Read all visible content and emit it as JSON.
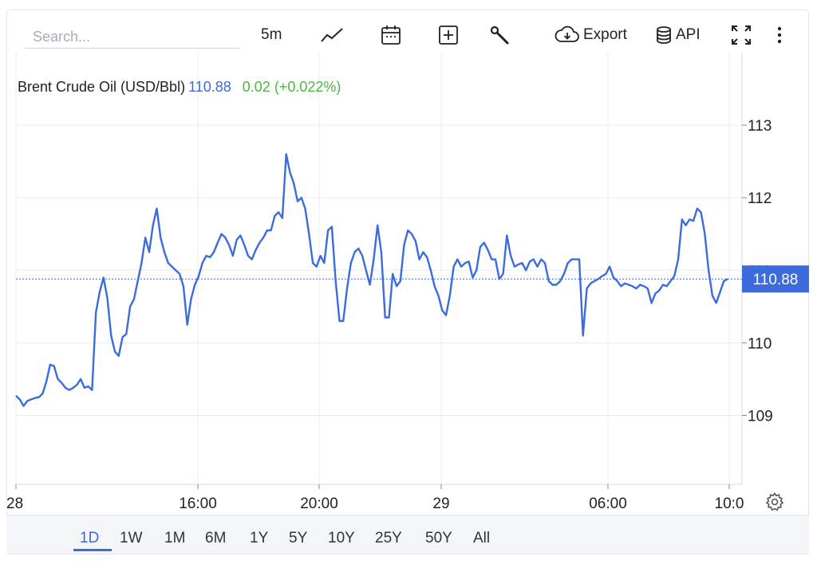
{
  "search": {
    "placeholder": "Search..."
  },
  "toolbar": {
    "interval_label": "5m",
    "export_label": "Export",
    "api_label": "API"
  },
  "legend": {
    "name": "Brent Crude Oil (USD/Bbl)",
    "value": "110.88",
    "change": "0.02 (+0.022%)"
  },
  "periods": [
    "1D",
    "1W",
    "1M",
    "6M",
    "1Y",
    "5Y",
    "10Y",
    "25Y",
    "50Y",
    "All"
  ],
  "active_period": "1D",
  "colors": {
    "line": "#3b6bdc",
    "change_positive": "#49b83f",
    "price_tag": "#3b6bdc"
  },
  "chart_data": {
    "type": "line",
    "title": "Brent Crude Oil (USD/Bbl)",
    "xlabel": "",
    "ylabel": "",
    "x_tick_labels": [
      "28",
      "16:00",
      "20:00",
      "29",
      "06:00",
      "10:0"
    ],
    "y_tick_labels": [
      "109",
      "110",
      "111",
      "112",
      "113"
    ],
    "ylim": [
      108.05,
      114.0
    ],
    "grid": true,
    "last_price_label": "110.88",
    "series": [
      {
        "values": [
          109.27,
          109.22,
          109.13,
          109.2,
          109.22,
          109.24,
          109.25,
          109.3,
          109.47,
          109.7,
          109.68,
          109.5,
          109.45,
          109.38,
          109.35,
          109.38,
          109.42,
          109.5,
          109.38,
          109.4,
          109.35,
          110.42,
          110.7,
          110.9,
          110.62,
          110.1,
          109.88,
          109.82,
          110.08,
          110.12,
          110.5,
          110.6,
          110.85,
          111.1,
          111.45,
          111.25,
          111.62,
          111.85,
          111.45,
          111.25,
          111.1,
          111.05,
          111.0,
          110.95,
          110.78,
          110.25,
          110.6,
          110.8,
          110.92,
          111.1,
          111.2,
          111.18,
          111.25,
          111.38,
          111.5,
          111.45,
          111.35,
          111.2,
          111.42,
          111.48,
          111.35,
          111.2,
          111.15,
          111.28,
          111.38,
          111.45,
          111.55,
          111.55,
          111.75,
          111.8,
          111.72,
          112.6,
          112.35,
          112.2,
          111.95,
          112.0,
          111.85,
          111.5,
          111.1,
          111.05,
          111.2,
          111.1,
          111.55,
          111.6,
          110.85,
          110.3,
          110.3,
          110.75,
          111.1,
          111.25,
          111.3,
          111.2,
          111.0,
          110.8,
          111.15,
          111.62,
          111.25,
          110.35,
          110.35,
          110.95,
          110.78,
          110.85,
          111.35,
          111.55,
          111.5,
          111.4,
          111.15,
          111.25,
          111.18,
          111.0,
          110.78,
          110.65,
          110.45,
          110.38,
          110.65,
          111.05,
          111.15,
          111.05,
          111.1,
          111.12,
          110.9,
          111.0,
          111.32,
          111.38,
          111.28,
          111.15,
          111.15,
          110.88,
          110.95,
          111.48,
          111.2,
          111.05,
          111.08,
          111.1,
          111.0,
          111.12,
          111.15,
          111.05,
          111.15,
          111.1,
          110.85,
          110.8,
          110.8,
          110.85,
          110.95,
          111.1,
          111.15,
          111.15,
          111.15,
          110.1,
          110.75,
          110.82,
          110.85,
          110.88,
          110.92,
          110.95,
          111.05,
          110.9,
          110.85,
          110.78,
          110.82,
          110.8,
          110.78,
          110.75,
          110.8,
          110.78,
          110.75,
          110.55,
          110.68,
          110.72,
          110.8,
          110.78,
          110.85,
          110.92,
          111.15,
          111.7,
          111.62,
          111.7,
          111.68,
          111.85,
          111.8,
          111.5,
          111.0,
          110.65,
          110.55,
          110.7,
          110.85,
          110.88
        ]
      }
    ]
  }
}
